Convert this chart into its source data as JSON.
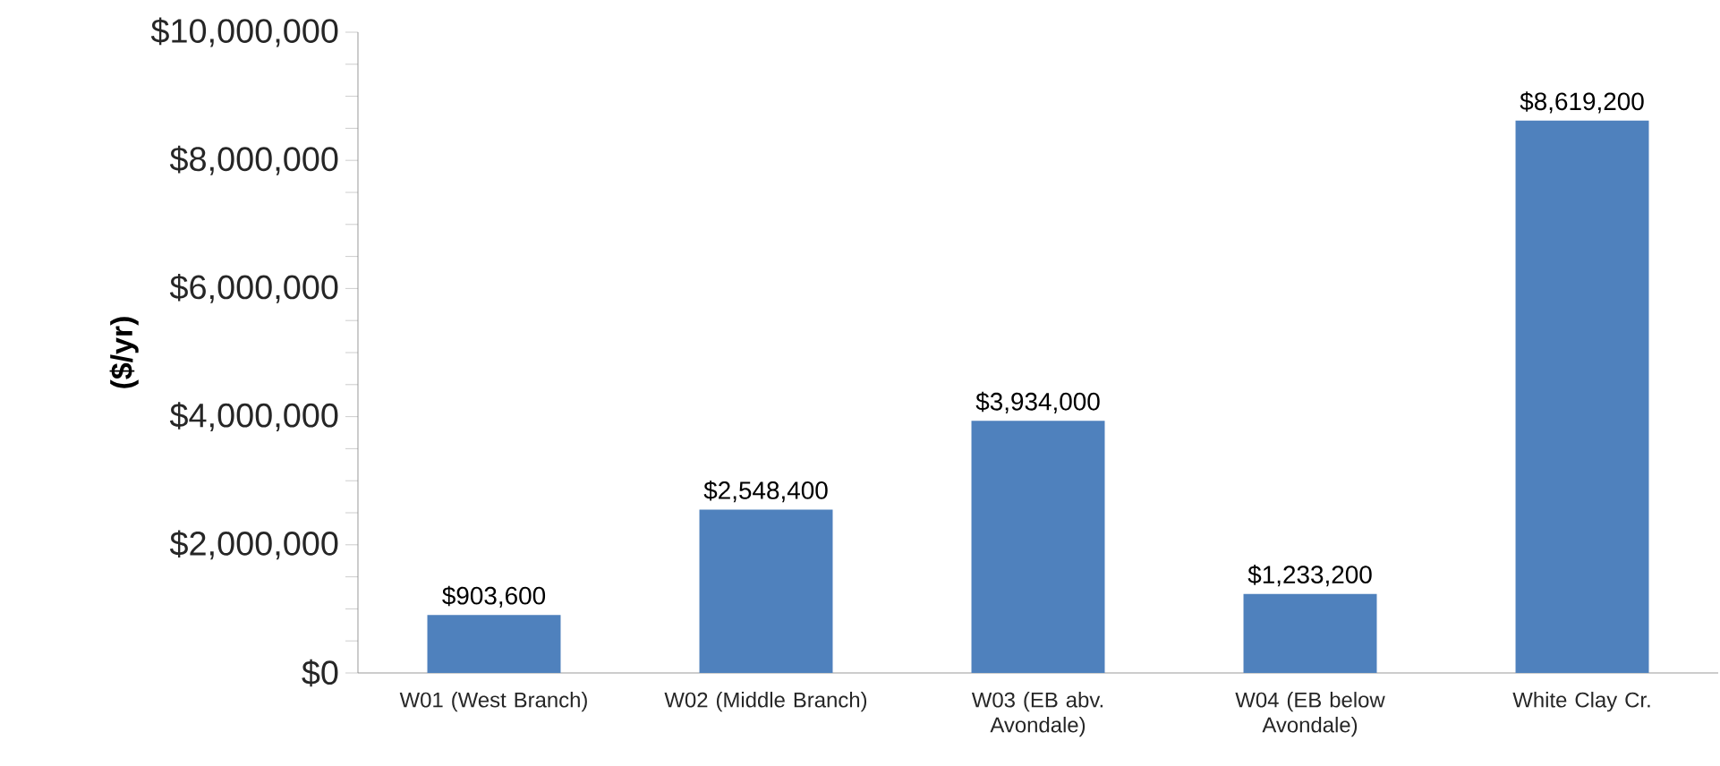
{
  "chart_data": {
    "type": "bar",
    "ylabel": "($/yr)",
    "categories": [
      "W01 (West Branch)",
      "W02 (Middle Branch)",
      "W03 (EB abv. Avondale)",
      "W04 (EB below Avondale)",
      "White Clay Cr."
    ],
    "values": [
      903600,
      2548400,
      3934000,
      1233200,
      8619200
    ],
    "value_labels": [
      "$903,600",
      "$2,548,400",
      "$3,934,000",
      "$1,233,200",
      "$8,619,200"
    ],
    "color": "#4f81bd",
    "ylim": [
      0,
      10000000
    ],
    "yticks": [
      {
        "value": 0,
        "label": "$0"
      },
      {
        "value": 500000,
        "label": null
      },
      {
        "value": 1000000,
        "label": null
      },
      {
        "value": 1500000,
        "label": null
      },
      {
        "value": 2000000,
        "label": "$2,000,000"
      },
      {
        "value": 2500000,
        "label": null
      },
      {
        "value": 3000000,
        "label": null
      },
      {
        "value": 3500000,
        "label": null
      },
      {
        "value": 4000000,
        "label": "$4,000,000"
      },
      {
        "value": 4500000,
        "label": null
      },
      {
        "value": 5000000,
        "label": null
      },
      {
        "value": 5500000,
        "label": null
      },
      {
        "value": 6000000,
        "label": "$6,000,000"
      },
      {
        "value": 6500000,
        "label": null
      },
      {
        "value": 7000000,
        "label": null
      },
      {
        "value": 7500000,
        "label": null
      },
      {
        "value": 8000000,
        "label": "$8,000,000"
      },
      {
        "value": 8500000,
        "label": null
      },
      {
        "value": 9000000,
        "label": null
      },
      {
        "value": 9500000,
        "label": null
      },
      {
        "value": 10000000,
        "label": "$10,000,000"
      }
    ],
    "grid": false
  }
}
